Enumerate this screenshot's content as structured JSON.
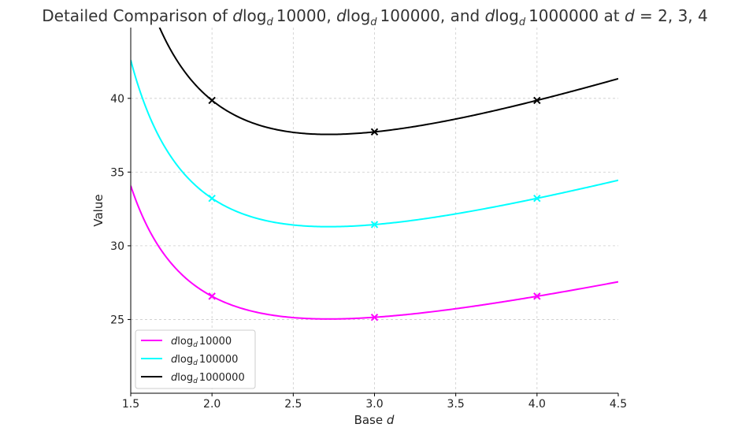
{
  "chart_data": {
    "type": "line",
    "title": "Detailed Comparison of dlog_d 10000, dlog_d 100000, and dlog_d 1000000 at d = 2, 3, 4",
    "title_parts": {
      "prefix": "Detailed Comparison of ",
      "d": "d",
      "log": "log",
      "sub": "d",
      "n1": "10000",
      "sep1": ", ",
      "n2": "100000",
      "sep2": ", and ",
      "n3": "1000000",
      "suffix_pre": " at ",
      "suffix_var": "d",
      "suffix_post": " = 2, 3, 4"
    },
    "xlabel": "Base d",
    "xlabel_parts": {
      "text": "Base ",
      "var": "d"
    },
    "ylabel": "Value",
    "xlim": [
      1.5,
      4.5
    ],
    "ylim": [
      20.0,
      44.8
    ],
    "xticks": [
      1.5,
      2.0,
      2.5,
      3.0,
      3.5,
      4.0,
      4.5
    ],
    "xtick_labels": [
      "1.5",
      "2.0",
      "2.5",
      "3.0",
      "3.5",
      "4.0",
      "4.5"
    ],
    "yticks": [
      25,
      30,
      35,
      40
    ],
    "ytick_labels": [
      "25",
      "30",
      "35",
      "40"
    ],
    "grid": true,
    "legend_position": "lower-left",
    "series": [
      {
        "name": "dlog_d 10000",
        "label": {
          "d": "d",
          "log": "log",
          "sub": "d",
          "n": "10000"
        },
        "color": "#ff00ff",
        "N": 10000,
        "markers": [
          {
            "x": 2,
            "y": 26.58
          },
          {
            "x": 3,
            "y": 25.15
          },
          {
            "x": 4,
            "y": 26.58
          }
        ]
      },
      {
        "name": "dlog_d 100000",
        "label": {
          "d": "d",
          "log": "log",
          "sub": "d",
          "n": "100000"
        },
        "color": "#00ffff",
        "N": 100000,
        "markers": [
          {
            "x": 2,
            "y": 33.22
          },
          {
            "x": 3,
            "y": 31.44
          },
          {
            "x": 4,
            "y": 33.22
          }
        ]
      },
      {
        "name": "dlog_d 1000000",
        "label": {
          "d": "d",
          "log": "log",
          "sub": "d",
          "n": "1000000"
        },
        "color": "#000000",
        "N": 1000000,
        "markers": [
          {
            "x": 2,
            "y": 39.86
          },
          {
            "x": 3,
            "y": 37.73
          },
          {
            "x": 4,
            "y": 39.86
          }
        ]
      }
    ]
  }
}
